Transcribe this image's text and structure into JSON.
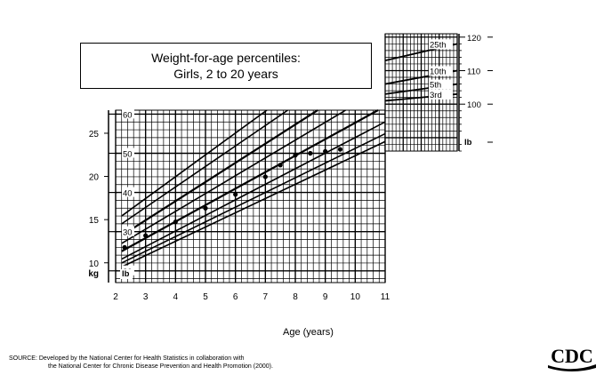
{
  "title": {
    "line1": "Weight-for-age percentiles:",
    "line2": "Girls, 2 to 20 years"
  },
  "footer": {
    "source_line1": "SOURCE: Developed by the National Center for Health Statistics in collaboration with",
    "source_line2": "the National Center for Chronic Disease Prevention and Health Promotion (2000).",
    "logo_text": "CDC"
  },
  "chart_data": [
    {
      "type": "line",
      "title": "Weight-for-age percentiles: Girls, 2 to 20 years",
      "xlabel": "Age (years)",
      "x_ticks": [
        2,
        3,
        4,
        5,
        6,
        7,
        8,
        9,
        10,
        11
      ],
      "xlim": [
        2,
        11
      ],
      "ylabel_left": "kg",
      "y_kg_ticks": [
        10,
        15,
        20,
        25
      ],
      "ylabel_right": "lb",
      "y_lb_ticks": [
        20,
        30,
        40,
        50,
        60
      ],
      "ylim_lb": [
        17,
        61
      ],
      "grid": true,
      "series": [
        {
          "name": "",
          "x": [
            2.2,
            11
          ],
          "y": [
            34,
            83
          ]
        },
        {
          "name": "",
          "x": [
            2.2,
            11
          ],
          "y": [
            32,
            78
          ]
        },
        {
          "name": "",
          "x": [
            2.2,
            11
          ],
          "y": [
            29,
            72
          ]
        },
        {
          "name": "",
          "x": [
            2.2,
            11
          ],
          "y": [
            27,
            67
          ]
        },
        {
          "name": "",
          "x": [
            2.2,
            11
          ],
          "y": [
            25,
            62
          ]
        },
        {
          "name": "",
          "x": [
            2.2,
            11
          ],
          "y": [
            23,
            58
          ]
        },
        {
          "name": "",
          "x": [
            2.2,
            11
          ],
          "y": [
            22,
            55
          ]
        },
        {
          "name": "",
          "x": [
            2.2,
            11
          ],
          "y": [
            21,
            53
          ]
        }
      ],
      "points": {
        "x": [
          2.3,
          3,
          4,
          5,
          6,
          7,
          7.5,
          8,
          8.5,
          9,
          9.5
        ],
        "y": [
          26,
          29,
          32.5,
          36,
          39.5,
          44,
          47,
          49.5,
          50,
          50.5,
          51
        ]
      }
    },
    {
      "type": "line",
      "title": "",
      "ylabel_right": "lb",
      "y_lb_ticks": [
        100,
        110,
        120
      ],
      "ylim_lb": [
        86,
        121
      ],
      "series": [
        {
          "name": "25th",
          "x": [
            0,
            1
          ],
          "y": [
            113,
            118
          ]
        },
        {
          "name": "10th",
          "x": [
            0,
            1
          ],
          "y": [
            106,
            110
          ]
        },
        {
          "name": "5th",
          "x": [
            0,
            1
          ],
          "y": [
            103,
            106
          ]
        },
        {
          "name": "3rd",
          "x": [
            0,
            1
          ],
          "y": [
            101,
            103
          ]
        }
      ]
    }
  ]
}
